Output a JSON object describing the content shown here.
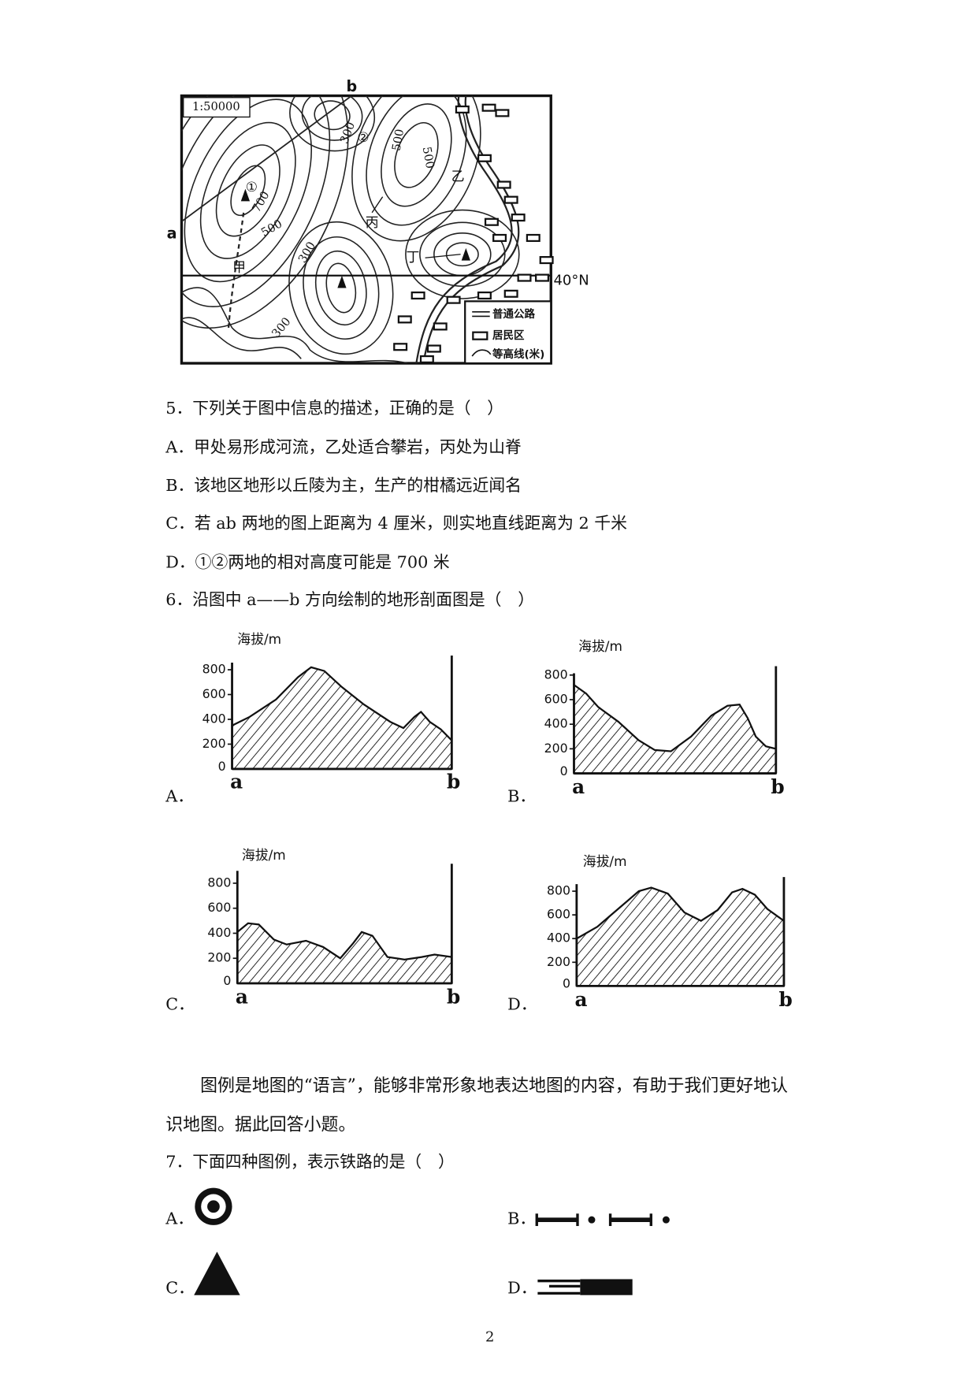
{
  "map": {
    "scale": "1:50000",
    "point_a": "a",
    "point_b": "b",
    "latitude": "40°N",
    "contour_labels": [
      "300",
      "500",
      "500",
      "700",
      "500",
      "300",
      "300"
    ],
    "place_labels": [
      "①",
      "②",
      "甲",
      "乙",
      "丙",
      "丁"
    ],
    "legend": [
      "普通公路",
      "居民区",
      "等高线(米)"
    ]
  },
  "question5": {
    "stem": "5．下列关于图中信息的描述，正确的是（　）",
    "options": [
      "A．甲处易形成河流，乙处适合攀岩，丙处为山脊",
      "B．该地区地形以丘陵为主，生产的柑橘远近闻名",
      "C．若 ab 两地的图上距离为 4 厘米，则实地直线距离为 2 千米",
      "D．①②两地的相对高度可能是 700 米"
    ]
  },
  "question6": {
    "stem": "6．沿图中 a——b 方向绘制的地形剖面图是（　）",
    "options": [
      {
        "label": "A．",
        "y_axis_label": "海拔/m",
        "yticks": [
          0,
          200,
          400,
          600,
          800
        ],
        "start": "a",
        "end": "b"
      },
      {
        "label": "B．",
        "y_axis_label": "海拔/m",
        "yticks": [
          0,
          200,
          400,
          600,
          800
        ],
        "start": "a",
        "end": "b"
      },
      {
        "label": "C．",
        "y_axis_label": "海拔/m",
        "yticks": [
          0,
          200,
          400,
          600,
          800
        ],
        "start": "a",
        "end": "b"
      },
      {
        "label": "D．",
        "y_axis_label": "海拔/m",
        "yticks": [
          0,
          200,
          400,
          600,
          800
        ],
        "start": "a",
        "end": "b"
      }
    ]
  },
  "passage": "图例是地图的“语言”，能够非常形象地表达地图的内容，有助于我们更好地认识地图。据此回答小题。",
  "question7": {
    "stem": "7．下面四种图例，表示铁路的是（　）",
    "options": [
      "A．",
      "B．",
      "C．",
      "D．"
    ]
  },
  "page_number": "2"
}
